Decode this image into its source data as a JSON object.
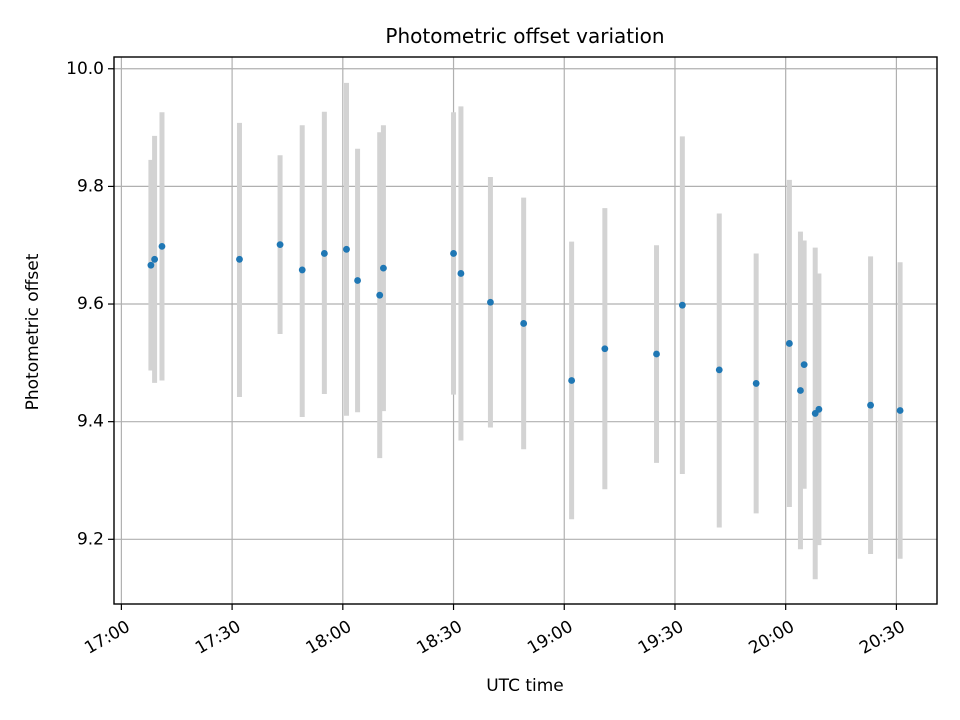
{
  "chart_data": {
    "type": "scatter",
    "title": "Photometric offset variation",
    "xlabel": "UTC time",
    "ylabel": "Photometric offset",
    "x_ticks": [
      "17:00",
      "17:30",
      "18:00",
      "18:30",
      "19:00",
      "19:30",
      "20:00",
      "20:30"
    ],
    "y_ticks": [
      "9.2",
      "9.4",
      "9.6",
      "9.8",
      "10.0"
    ],
    "xlim": [
      "16:58",
      "20:41"
    ],
    "ylim": [
      9.09,
      10.02
    ],
    "grid": true,
    "colors": {
      "point": "#1f77b4",
      "errorbar": "#d3d3d3",
      "grid": "#b0b0b0"
    },
    "points": [
      {
        "t": "17:08",
        "y": 9.666,
        "ylo": 9.487,
        "yhi": 9.845
      },
      {
        "t": "17:09",
        "y": 9.676,
        "ylo": 9.466,
        "yhi": 9.886
      },
      {
        "t": "17:11",
        "y": 9.698,
        "ylo": 9.47,
        "yhi": 9.926
      },
      {
        "t": "17:32",
        "y": 9.676,
        "ylo": 9.442,
        "yhi": 9.908
      },
      {
        "t": "17:43",
        "y": 9.701,
        "ylo": 9.549,
        "yhi": 9.853
      },
      {
        "t": "17:49",
        "y": 9.658,
        "ylo": 9.408,
        "yhi": 9.904
      },
      {
        "t": "17:55",
        "y": 9.686,
        "ylo": 9.447,
        "yhi": 9.927
      },
      {
        "t": "18:01",
        "y": 9.693,
        "ylo": 9.41,
        "yhi": 9.976
      },
      {
        "t": "18:04",
        "y": 9.64,
        "ylo": 9.416,
        "yhi": 9.864
      },
      {
        "t": "18:10",
        "y": 9.615,
        "ylo": 9.338,
        "yhi": 9.892
      },
      {
        "t": "18:11",
        "y": 9.661,
        "ylo": 9.418,
        "yhi": 9.904
      },
      {
        "t": "18:30",
        "y": 9.686,
        "ylo": 9.446,
        "yhi": 9.926
      },
      {
        "t": "18:32",
        "y": 9.652,
        "ylo": 9.368,
        "yhi": 9.936
      },
      {
        "t": "18:40",
        "y": 9.603,
        "ylo": 9.39,
        "yhi": 9.816
      },
      {
        "t": "18:49",
        "y": 9.567,
        "ylo": 9.353,
        "yhi": 9.781
      },
      {
        "t": "19:02",
        "y": 9.47,
        "ylo": 9.234,
        "yhi": 9.706
      },
      {
        "t": "19:11",
        "y": 9.524,
        "ylo": 9.285,
        "yhi": 9.763
      },
      {
        "t": "19:25",
        "y": 9.515,
        "ylo": 9.33,
        "yhi": 9.7
      },
      {
        "t": "19:32",
        "y": 9.598,
        "ylo": 9.311,
        "yhi": 9.885
      },
      {
        "t": "19:42",
        "y": 9.488,
        "ylo": 9.22,
        "yhi": 9.754
      },
      {
        "t": "19:52",
        "y": 9.465,
        "ylo": 9.244,
        "yhi": 9.686
      },
      {
        "t": "20:01",
        "y": 9.533,
        "ylo": 9.255,
        "yhi": 9.811
      },
      {
        "t": "20:04",
        "y": 9.453,
        "ylo": 9.183,
        "yhi": 9.723
      },
      {
        "t": "20:05",
        "y": 9.497,
        "ylo": 9.286,
        "yhi": 9.708
      },
      {
        "t": "20:08",
        "y": 9.414,
        "ylo": 9.132,
        "yhi": 9.696
      },
      {
        "t": "20:09",
        "y": 9.421,
        "ylo": 9.19,
        "yhi": 9.652
      },
      {
        "t": "20:23",
        "y": 9.428,
        "ylo": 9.175,
        "yhi": 9.681
      },
      {
        "t": "20:31",
        "y": 9.419,
        "ylo": 9.167,
        "yhi": 9.671
      }
    ]
  }
}
